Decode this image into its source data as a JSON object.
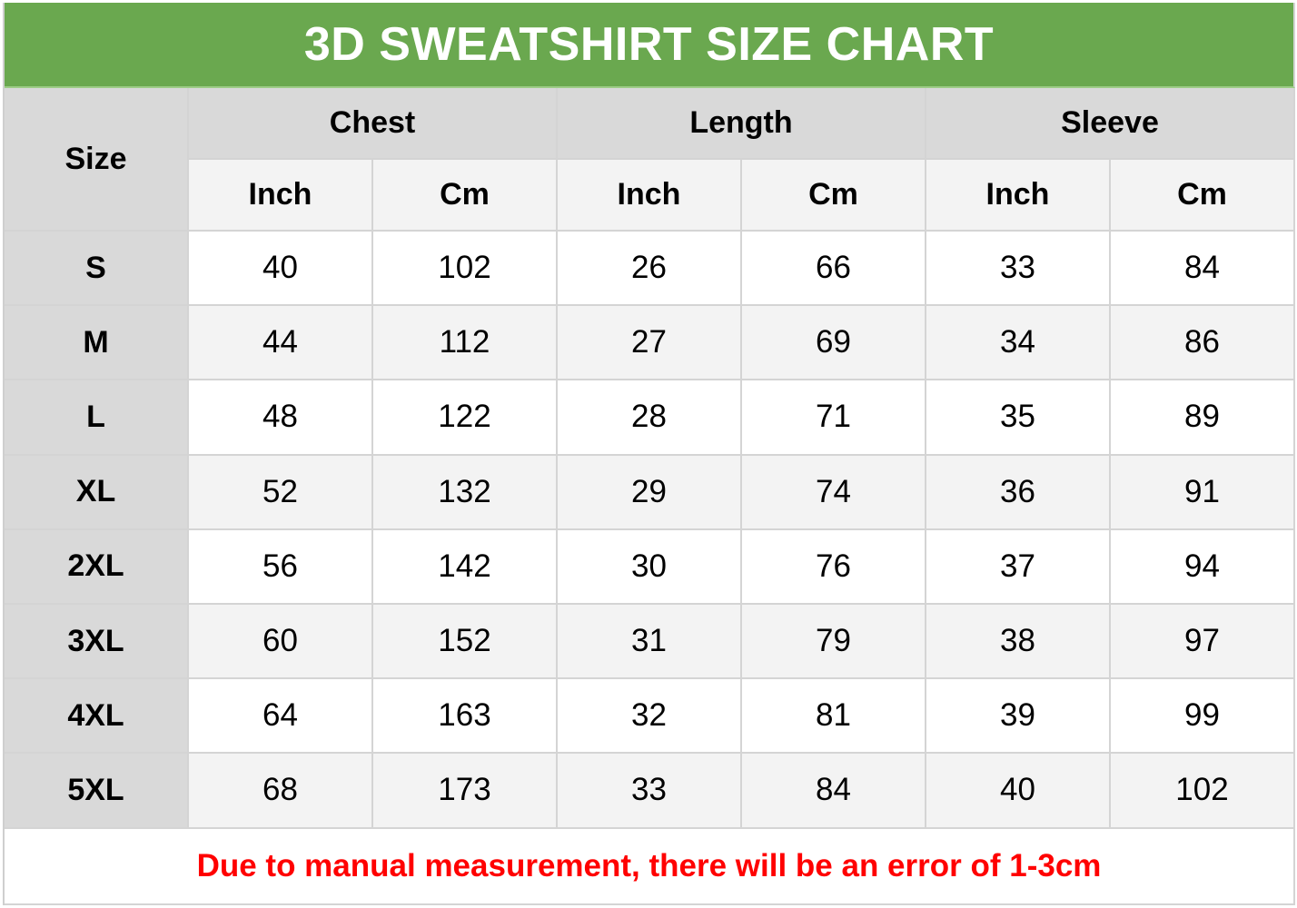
{
  "title": "3D SWEATSHIRT SIZE CHART",
  "header": {
    "size_label": "Size",
    "groups": [
      "Chest",
      "Length",
      "Sleeve"
    ],
    "units": [
      "Inch",
      "Cm",
      "Inch",
      "Cm",
      "Inch",
      "Cm"
    ]
  },
  "rows": [
    {
      "size": "S",
      "values": [
        "40",
        "102",
        "26",
        "66",
        "33",
        "84"
      ]
    },
    {
      "size": "M",
      "values": [
        "44",
        "112",
        "27",
        "69",
        "34",
        "86"
      ]
    },
    {
      "size": "L",
      "values": [
        "48",
        "122",
        "28",
        "71",
        "35",
        "89"
      ]
    },
    {
      "size": "XL",
      "values": [
        "52",
        "132",
        "29",
        "74",
        "36",
        "91"
      ]
    },
    {
      "size": "2XL",
      "values": [
        "56",
        "142",
        "30",
        "76",
        "37",
        "94"
      ]
    },
    {
      "size": "3XL",
      "values": [
        "60",
        "152",
        "31",
        "79",
        "38",
        "97"
      ]
    },
    {
      "size": "4XL",
      "values": [
        "64",
        "163",
        "32",
        "81",
        "39",
        "99"
      ]
    },
    {
      "size": "5XL",
      "values": [
        "68",
        "173",
        "33",
        "84",
        "40",
        "102"
      ]
    }
  ],
  "note": "Due to manual measurement, there will be an error of 1-3cm",
  "colors": {
    "title_bg": "#6aa84f",
    "header_bg": "#d9d9d9",
    "alt_row_bg": "#f3f3f3",
    "note_text": "#ff0000"
  }
}
